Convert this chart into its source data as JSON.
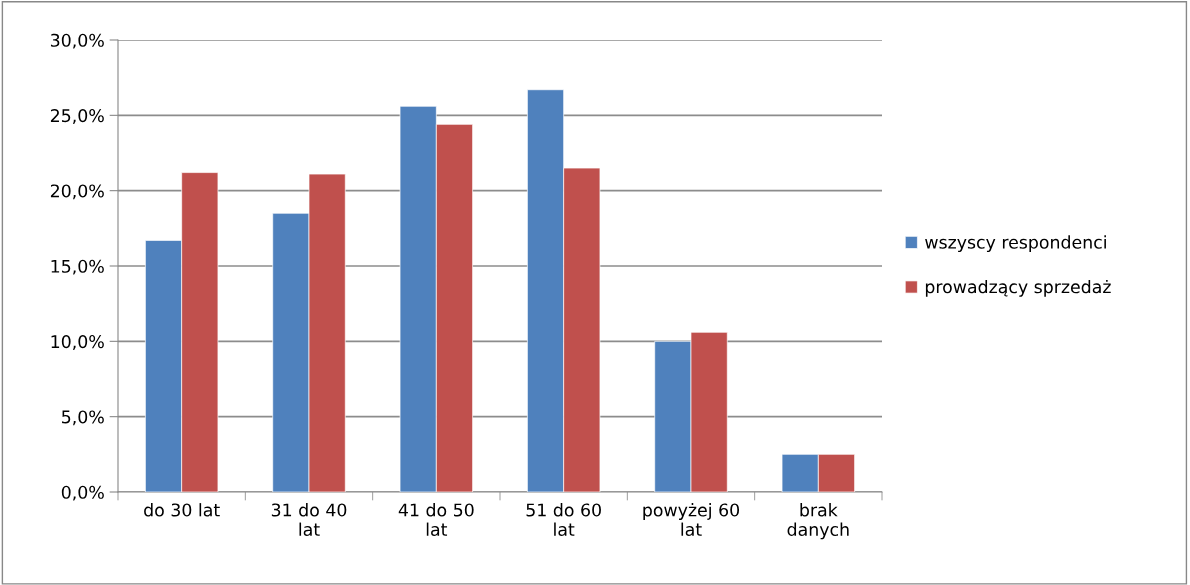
{
  "chart_data": {
    "type": "bar",
    "categories": [
      "do 30 lat",
      "31 do 40\nlat",
      "41 do 50\nlat",
      "51 do 60\nlat",
      "powyżej 60\nlat",
      "brak\ndanych"
    ],
    "series": [
      {
        "name": "wszyscy respondenci",
        "color": "#4f81bd",
        "values": [
          16.7,
          18.5,
          25.6,
          26.7,
          10.0,
          2.5
        ]
      },
      {
        "name": "prowadzący sprzedaż",
        "color": "#c0504d",
        "values": [
          21.2,
          21.1,
          24.4,
          21.5,
          10.6,
          2.5
        ]
      }
    ],
    "ylim": [
      0,
      30
    ],
    "yticks": [
      {
        "value": 0,
        "label": "0,0%"
      },
      {
        "value": 5,
        "label": "5,0%"
      },
      {
        "value": 10,
        "label": "10,0%"
      },
      {
        "value": 15,
        "label": "15,0%"
      },
      {
        "value": 20,
        "label": "20,0%"
      },
      {
        "value": 25,
        "label": "25,0%"
      },
      {
        "value": 30,
        "label": "30,0%"
      }
    ],
    "grid": "y",
    "legend": "right"
  }
}
